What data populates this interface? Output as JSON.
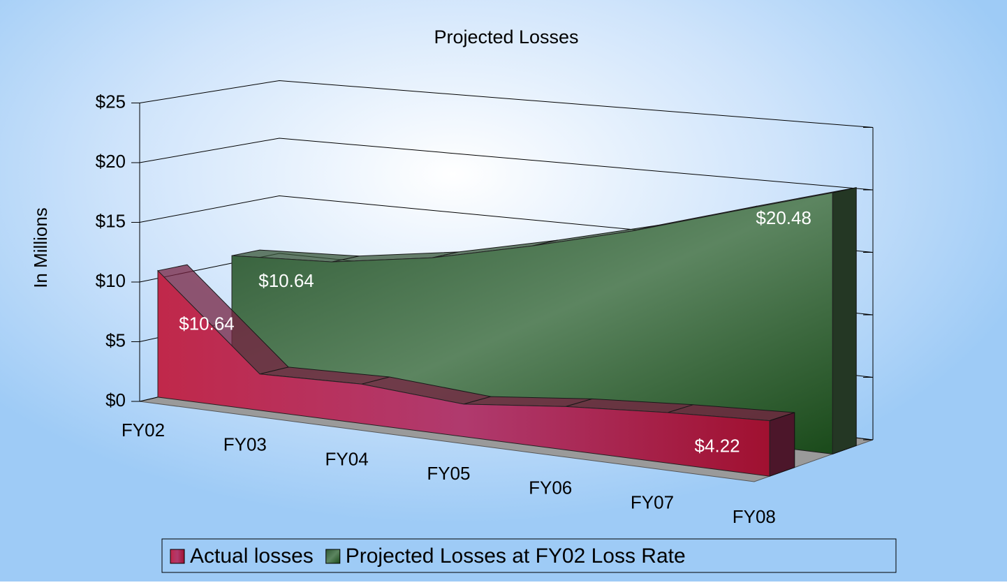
{
  "chart_data": {
    "type": "area3d",
    "title": "Projected Losses",
    "y_label": "In Millions",
    "categories": [
      "FY02",
      "FY03",
      "FY04",
      "FY05",
      "FY06",
      "FY07",
      "FY08"
    ],
    "series": [
      {
        "name": "Actual losses",
        "color": "#a8325e",
        "values": [
          10.64,
          3.0,
          3.2,
          2.6,
          3.4,
          3.9,
          4.22
        ],
        "value_labels": [
          "$10.64",
          null,
          null,
          null,
          null,
          null,
          "$4.22"
        ]
      },
      {
        "name": "Projected Losses at FY02 Loss Rate",
        "color": "#4f7a50",
        "values": [
          10.64,
          11.0,
          12.2,
          14.0,
          16.0,
          18.3,
          20.48
        ],
        "value_labels": [
          "$10.64",
          null,
          null,
          null,
          null,
          null,
          "$20.48"
        ]
      }
    ],
    "ylim": [
      0,
      25
    ],
    "yticks": [
      {
        "value": 0,
        "label": "$0"
      },
      {
        "value": 5,
        "label": "$5"
      },
      {
        "value": 10,
        "label": "$10"
      },
      {
        "value": 15,
        "label": "$15"
      },
      {
        "value": 20,
        "label": "$20"
      },
      {
        "value": 25,
        "label": "$25"
      }
    ],
    "grid": true,
    "legend": "bottom"
  }
}
